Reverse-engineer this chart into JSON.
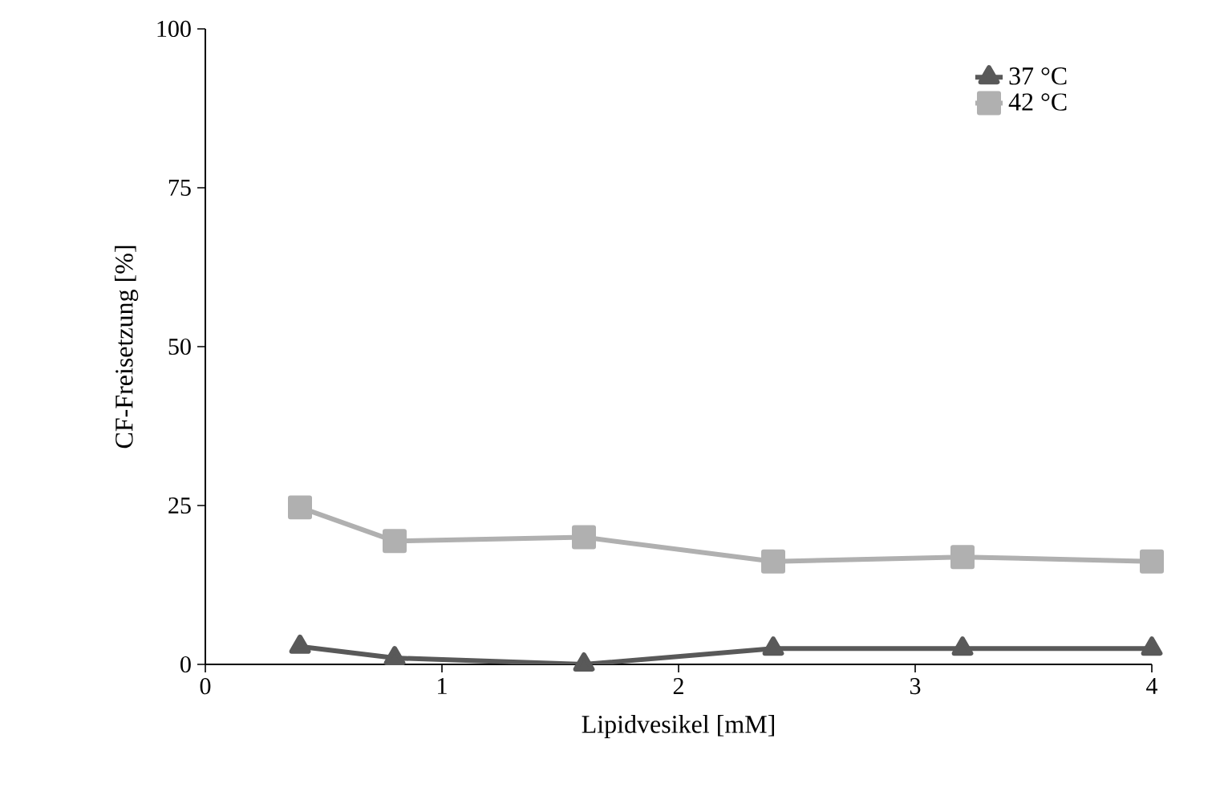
{
  "chart_data": {
    "type": "line",
    "xlabel": "Lipidvesikel [mM]",
    "ylabel": "CF-Freisetzung [%]",
    "x": [
      0.4,
      0.8,
      1.6,
      2.4,
      3.2,
      4.0
    ],
    "series": [
      {
        "name": "37 °C",
        "color": "#595959",
        "marker": "triangle",
        "values": [
          2.8,
          1.0,
          0,
          2.5,
          2.5,
          2.5
        ]
      },
      {
        "name": "42 °C",
        "color": "#b0b0b0",
        "marker": "square",
        "values": [
          24.7,
          19.4,
          20,
          16.2,
          16.9,
          16.2
        ]
      }
    ],
    "xlim": [
      0,
      4
    ],
    "ylim": [
      0,
      100
    ],
    "xticks": [
      0,
      1,
      2,
      3,
      4
    ],
    "yticks": [
      0,
      25,
      50,
      75,
      100
    ],
    "legend": "top right",
    "grid": false,
    "line_style": "solid"
  }
}
